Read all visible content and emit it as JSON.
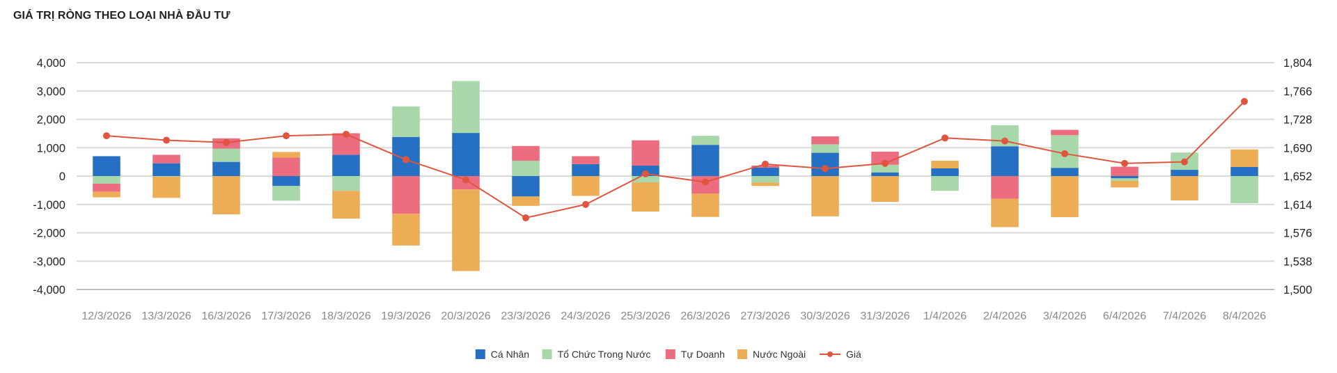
{
  "chart_title": "GIÁ TRỊ RÒNG THEO LOẠI NHÀ ĐẦU TƯ",
  "chart_data": {
    "type": "bar",
    "stacked": true,
    "title": "GIÁ TRỊ RÒNG THEO LOẠI NHÀ ĐẦU TƯ",
    "categories": [
      "12/3/2026",
      "13/3/2026",
      "16/3/2026",
      "17/3/2026",
      "18/3/2026",
      "19/3/2026",
      "20/3/2026",
      "23/3/2026",
      "24/3/2026",
      "25/3/2026",
      "26/3/2026",
      "27/3/2026",
      "30/3/2026",
      "31/3/2026",
      "1/4/2026",
      "2/4/2026",
      "3/4/2026",
      "6/4/2026",
      "7/4/2026",
      "8/4/2026"
    ],
    "series": [
      {
        "name": "Cá Nhân",
        "color": "#2670c4",
        "values": [
          700,
          450,
          500,
          -350,
          750,
          1380,
          1520,
          -720,
          420,
          370,
          1100,
          300,
          820,
          130,
          270,
          1050,
          290,
          -80,
          220,
          320
        ]
      },
      {
        "name": "Tổ Chức Trong Nước",
        "color": "#a8d8a9",
        "values": [
          -270,
          -20,
          470,
          -520,
          -520,
          1080,
          1830,
          540,
          0,
          -220,
          320,
          -230,
          300,
          270,
          -520,
          740,
          1150,
          -90,
          610,
          -960
        ]
      },
      {
        "name": "Tự Doanh",
        "color": "#ec6c80",
        "values": [
          -280,
          300,
          360,
          650,
          760,
          -1330,
          -470,
          520,
          280,
          890,
          -620,
          70,
          280,
          460,
          0,
          -800,
          190,
          330,
          0,
          0
        ]
      },
      {
        "name": "Nước Ngoài",
        "color": "#ecad56",
        "values": [
          -200,
          -750,
          -1350,
          200,
          -980,
          -1120,
          -2880,
          -330,
          -700,
          -1030,
          -820,
          -120,
          -1420,
          -910,
          270,
          -1000,
          -1450,
          -230,
          -860,
          620
        ]
      }
    ],
    "line": {
      "name": "Giá",
      "color": "#e0553e",
      "values": [
        1706,
        1700,
        1697,
        1706,
        1708,
        1674,
        1647,
        1596,
        1614,
        1655,
        1644,
        1668,
        1662,
        1669,
        1703,
        1699,
        1682,
        1669,
        1671,
        1752
      ]
    },
    "y_left": {
      "min": -4000,
      "max": 4000,
      "ticks": [
        "-4,000",
        "-3,000",
        "-2,000",
        "-1,000",
        "0",
        "1,000",
        "2,000",
        "3,000",
        "4,000"
      ]
    },
    "y_right": {
      "min": 1500,
      "max": 1804,
      "ticks": [
        "1,500",
        "1,538",
        "1,576",
        "1,614",
        "1,652",
        "1,690",
        "1,728",
        "1,766",
        "1,804"
      ]
    },
    "grid": true,
    "legend": "bottom-center"
  }
}
